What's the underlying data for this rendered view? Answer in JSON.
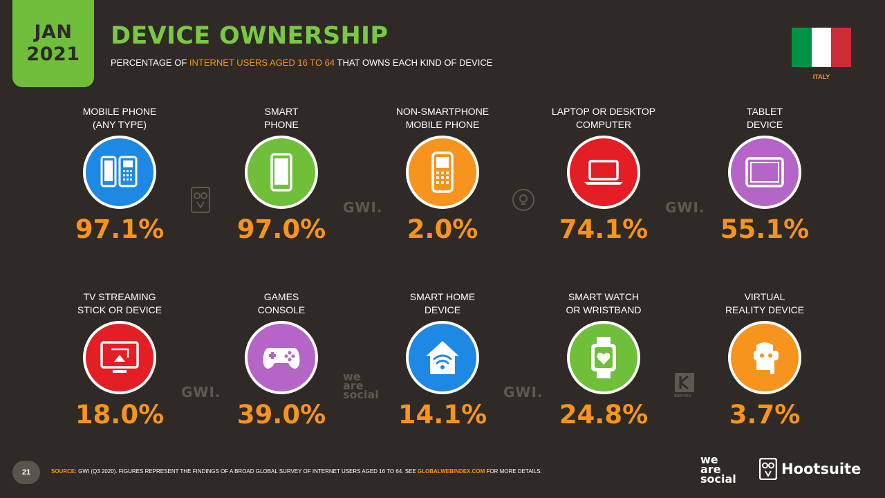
{
  "header": {
    "date_month": "JAN",
    "date_year": "2021",
    "title": "DEVICE OWNERSHIP",
    "subtitle_pre": "PERCENTAGE OF ",
    "subtitle_highlight": "INTERNET USERS AGED 16 TO 64",
    "subtitle_post": " THAT OWNS EACH KIND OF DEVICE",
    "country": "ITALY",
    "flag_colors": [
      "#009246",
      "#ffffff",
      "#ce2b37"
    ]
  },
  "devices": [
    {
      "label_line1": "MOBILE PHONE",
      "label_line2": "(ANY TYPE)",
      "value": "97.1%",
      "color": "#1e88e5",
      "icon": "mobile-phones-icon"
    },
    {
      "label_line1": "SMART",
      "label_line2": "PHONE",
      "value": "97.0%",
      "color": "#6fbf3a",
      "icon": "smartphone-icon"
    },
    {
      "label_line1": "NON-SMARTPHONE",
      "label_line2": "MOBILE PHONE",
      "value": "2.0%",
      "color": "#f7941d",
      "icon": "feature-phone-icon"
    },
    {
      "label_line1": "LAPTOP OR DESKTOP",
      "label_line2": "COMPUTER",
      "value": "74.1%",
      "color": "#e31e24",
      "icon": "laptop-icon"
    },
    {
      "label_line1": "TABLET",
      "label_line2": "DEVICE",
      "value": "55.1%",
      "color": "#b565c7",
      "icon": "tablet-icon"
    },
    {
      "label_line1": "TV STREAMING",
      "label_line2": "STICK OR DEVICE",
      "value": "18.0%",
      "color": "#e31e24",
      "icon": "tv-streaming-icon"
    },
    {
      "label_line1": "GAMES",
      "label_line2": "CONSOLE",
      "value": "39.0%",
      "color": "#b565c7",
      "icon": "gamepad-icon"
    },
    {
      "label_line1": "SMART HOME",
      "label_line2": "DEVICE",
      "value": "14.1%",
      "color": "#1e88e5",
      "icon": "smart-home-icon"
    },
    {
      "label_line1": "SMART WATCH",
      "label_line2": "OR WRISTBAND",
      "value": "24.8%",
      "color": "#6fbf3a",
      "icon": "smartwatch-icon"
    },
    {
      "label_line1": "VIRTUAL",
      "label_line2": "REALITY DEVICE",
      "value": "3.7%",
      "color": "#f7941d",
      "icon": "vr-headset-icon"
    }
  ],
  "chart_data": {
    "type": "table",
    "title": "DEVICE OWNERSHIP",
    "subtitle": "PERCENTAGE OF INTERNET USERS AGED 16 TO 64 THAT OWNS EACH KIND OF DEVICE",
    "categories": [
      "MOBILE PHONE (ANY TYPE)",
      "SMART PHONE",
      "NON-SMARTPHONE MOBILE PHONE",
      "LAPTOP OR DESKTOP COMPUTER",
      "TABLET DEVICE",
      "TV STREAMING STICK OR DEVICE",
      "GAMES CONSOLE",
      "SMART HOME DEVICE",
      "SMART WATCH OR WRISTBAND",
      "VIRTUAL REALITY DEVICE"
    ],
    "values": [
      97.1,
      97.0,
      2.0,
      74.1,
      55.1,
      18.0,
      39.0,
      14.1,
      24.8,
      3.7
    ],
    "unit": "%"
  },
  "watermarks": {
    "gwi": "GWI.",
    "we": "we",
    "are": "are",
    "social": "social",
    "kepios": "KEPIOS"
  },
  "footer": {
    "page_number": "21",
    "source_label": "SOURCE:",
    "source_text": " GWI (Q3 2020). FIGURES REPRESENT THE FINDINGS OF A BROAD GLOBAL SURVEY OF INTERNET USERS AGED 16 TO 64. SEE ",
    "source_link": "GLOBALWEBINDEX.COM",
    "source_end": " FOR MORE DETAILS.",
    "logo_we": "we",
    "logo_are": "are",
    "logo_social": "social",
    "logo_hootsuite": "Hootsuite"
  }
}
